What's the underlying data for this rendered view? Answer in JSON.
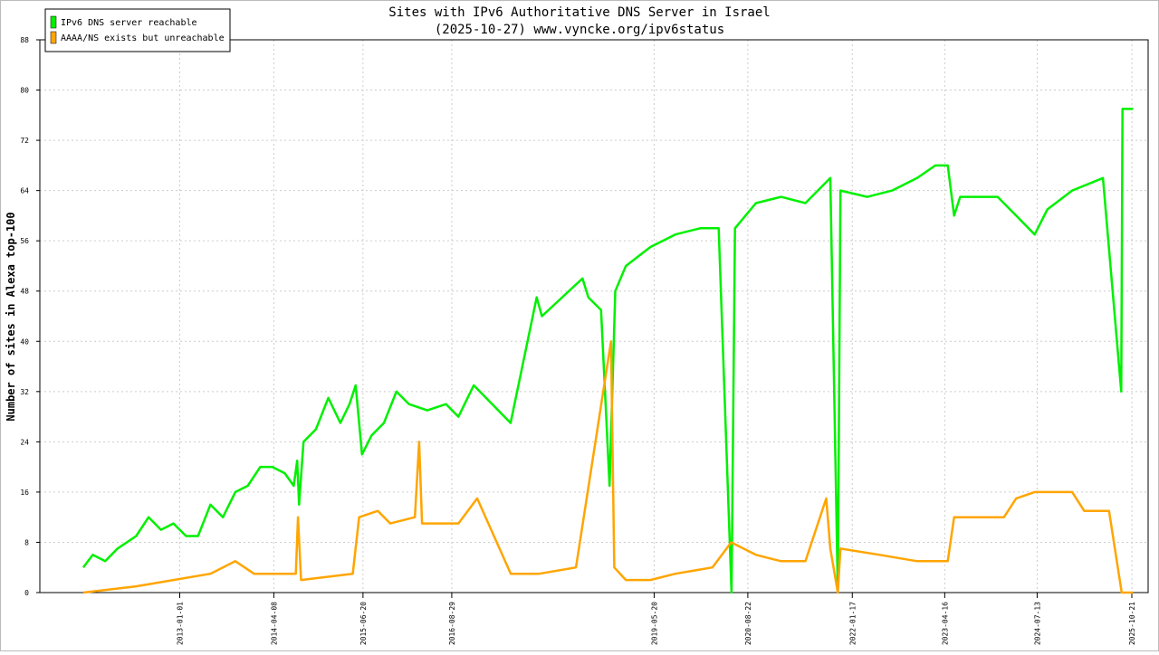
{
  "chart_data": {
    "type": "line",
    "title": "Sites with IPv6 Authoritative DNS Server in Israel",
    "subtitle": "(2025-10-27) www.vyncke.org/ipv6status",
    "y_label": "Number of sites in Alexa top-100",
    "xlim": [
      "2011-02-14",
      "2026-01-09"
    ],
    "xticks": [
      "2013-01-01",
      "2014-04-08",
      "2015-06-20",
      "2016-08-29",
      "2019-05-20",
      "2020-08-22",
      "2022-01-17",
      "2023-04-16",
      "2024-07-13",
      "2025-10-21"
    ],
    "ylim": [
      0,
      88
    ],
    "yticks": [
      0,
      8,
      16,
      24,
      32,
      40,
      48,
      56,
      64,
      72,
      80,
      88
    ],
    "grid": true,
    "legend": "top-left",
    "series": [
      {
        "name": "IPv6 DNS server reachable",
        "color": "#00f000",
        "x": [
          "2011-09-15",
          "2011-11-01",
          "2012-01-01",
          "2012-03-01",
          "2012-06-01",
          "2012-08-01",
          "2012-10-01",
          "2012-12-01",
          "2013-02-01",
          "2013-04-01",
          "2013-06-01",
          "2013-08-01",
          "2013-10-01",
          "2013-12-01",
          "2014-02-01",
          "2014-04-01",
          "2014-06-01",
          "2014-07-15",
          "2014-08-01",
          "2014-08-10",
          "2014-09-01",
          "2014-11-01",
          "2015-01-01",
          "2015-03-01",
          "2015-04-15",
          "2015-05-15",
          "2015-06-15",
          "2015-08-01",
          "2015-10-01",
          "2015-12-01",
          "2016-02-01",
          "2016-05-01",
          "2016-08-01",
          "2016-10-01",
          "2016-12-15",
          "2017-06-14",
          "2017-10-20",
          "2017-11-15",
          "2018-06-02",
          "2018-07-01",
          "2018-09-01",
          "2018-10-13",
          "2018-11-10",
          "2019-01-01",
          "2019-05-01",
          "2019-09-01",
          "2020-01-01",
          "2020-04-01",
          "2020-06-03",
          "2020-06-20",
          "2020-10-01",
          "2021-02-01",
          "2021-06-01",
          "2021-10-01",
          "2021-11-07",
          "2021-11-20",
          "2022-04-01",
          "2022-08-01",
          "2022-12-01",
          "2023-03-01",
          "2023-05-01",
          "2023-06-01",
          "2023-07-01",
          "2023-11-01",
          "2024-01-01",
          "2024-04-01",
          "2024-07-01",
          "2024-09-01",
          "2025-01-01",
          "2025-06-01",
          "2025-08-30",
          "2025-09-05",
          "2025-10-27"
        ],
        "values": [
          4,
          6,
          5,
          7,
          9,
          12,
          10,
          11,
          9,
          9,
          14,
          12,
          16,
          17,
          20,
          20,
          19,
          17,
          21,
          14,
          24,
          26,
          31,
          27,
          30,
          33,
          22,
          25,
          27,
          32,
          30,
          29,
          30,
          28,
          33,
          27,
          47,
          44,
          50,
          47,
          45,
          17,
          48,
          52,
          55,
          57,
          58,
          58,
          0,
          58,
          62,
          63,
          62,
          66,
          0,
          64,
          63,
          64,
          66,
          68,
          68,
          60,
          63,
          63,
          63,
          60,
          57,
          61,
          64,
          66,
          32,
          77,
          77
        ]
      },
      {
        "name": "AAAA/NS exists but unreachable",
        "color": "#ffa500",
        "x": [
          "2011-09-15",
          "2012-06-01",
          "2013-06-01",
          "2013-10-01",
          "2014-01-01",
          "2014-06-01",
          "2014-07-25",
          "2014-08-05",
          "2014-08-20",
          "2015-05-01",
          "2015-06-01",
          "2015-09-01",
          "2015-11-01",
          "2016-03-01",
          "2016-03-22",
          "2016-04-05",
          "2016-10-01",
          "2017-01-01",
          "2017-06-15",
          "2017-11-01",
          "2018-05-01",
          "2018-10-20",
          "2018-11-05",
          "2019-01-01",
          "2019-05-01",
          "2019-09-01",
          "2020-03-01",
          "2020-06-01",
          "2020-10-01",
          "2021-02-01",
          "2021-06-01",
          "2021-09-11",
          "2021-10-01",
          "2021-11-07",
          "2021-11-20",
          "2022-06-01",
          "2022-12-01",
          "2023-05-01",
          "2023-06-01",
          "2023-11-01",
          "2024-02-01",
          "2024-04-01",
          "2024-07-01",
          "2025-01-01",
          "2025-03-01",
          "2025-07-01",
          "2025-09-01",
          "2025-10-27"
        ],
        "values": [
          0,
          1,
          3,
          5,
          3,
          3,
          3,
          12,
          2,
          3,
          12,
          13,
          11,
          12,
          24,
          11,
          11,
          15,
          3,
          3,
          4,
          40,
          4,
          2,
          2,
          3,
          4,
          8,
          6,
          5,
          5,
          15,
          7,
          0,
          7,
          6,
          5,
          5,
          12,
          12,
          12,
          15,
          16,
          16,
          13,
          13,
          0,
          0
        ]
      }
    ]
  }
}
